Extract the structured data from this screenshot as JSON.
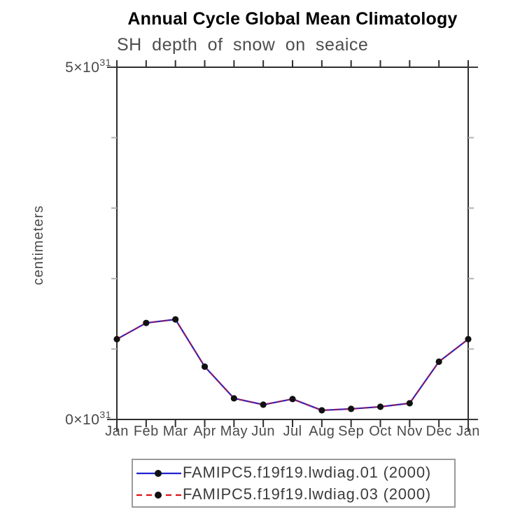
{
  "title": "Annual Cycle Global Mean Climatology",
  "chart_data": {
    "type": "line",
    "title": "Annual Cycle Global Mean Climatology",
    "subtitle": "SH depth of snow on seaice",
    "ylabel": "centimeters",
    "categories": [
      "Jan",
      "Feb",
      "Mar",
      "Apr",
      "May",
      "Jun",
      "Jul",
      "Aug",
      "Sep",
      "Oct",
      "Nov",
      "Dec",
      "Jan"
    ],
    "values_scale": "1e31",
    "ylim": [
      0,
      5
    ],
    "grid": false,
    "legend_position": "bottom",
    "y_axis": {
      "labeled_ticks": [
        {
          "value": 5,
          "text": "5×10",
          "exponent": "31"
        },
        {
          "value": 0,
          "text": "0×10",
          "exponent": "31"
        }
      ],
      "minor_tick_values": [
        1,
        2,
        3,
        4
      ]
    },
    "series": [
      {
        "name": "FAMIPC5.f19f19.lwdiag.01 (2000)",
        "color": "#2222cf",
        "style": "solid",
        "marker": "circle",
        "marker_color": "#111111",
        "values": [
          1.14,
          1.37,
          1.42,
          0.75,
          0.3,
          0.21,
          0.29,
          0.13,
          0.15,
          0.18,
          0.23,
          0.82,
          1.14
        ]
      },
      {
        "name": "FAMIPC5.f19f19.lwdiag.03 (2000)",
        "color": "#e01010",
        "style": "dashed",
        "marker": "circle",
        "marker_color": "#111111",
        "values": [
          1.14,
          1.37,
          1.42,
          0.75,
          0.3,
          0.21,
          0.29,
          0.13,
          0.15,
          0.18,
          0.23,
          0.82,
          1.14
        ]
      }
    ],
    "colors": {
      "frame": "#2e2e2e",
      "minor_tick": "#b3b3b3",
      "major_tick": "#3a3a3a",
      "axis_text": "#4a4a4a",
      "legend_border": "#9a9a9a",
      "legend_text": "#3c3c3c"
    }
  }
}
